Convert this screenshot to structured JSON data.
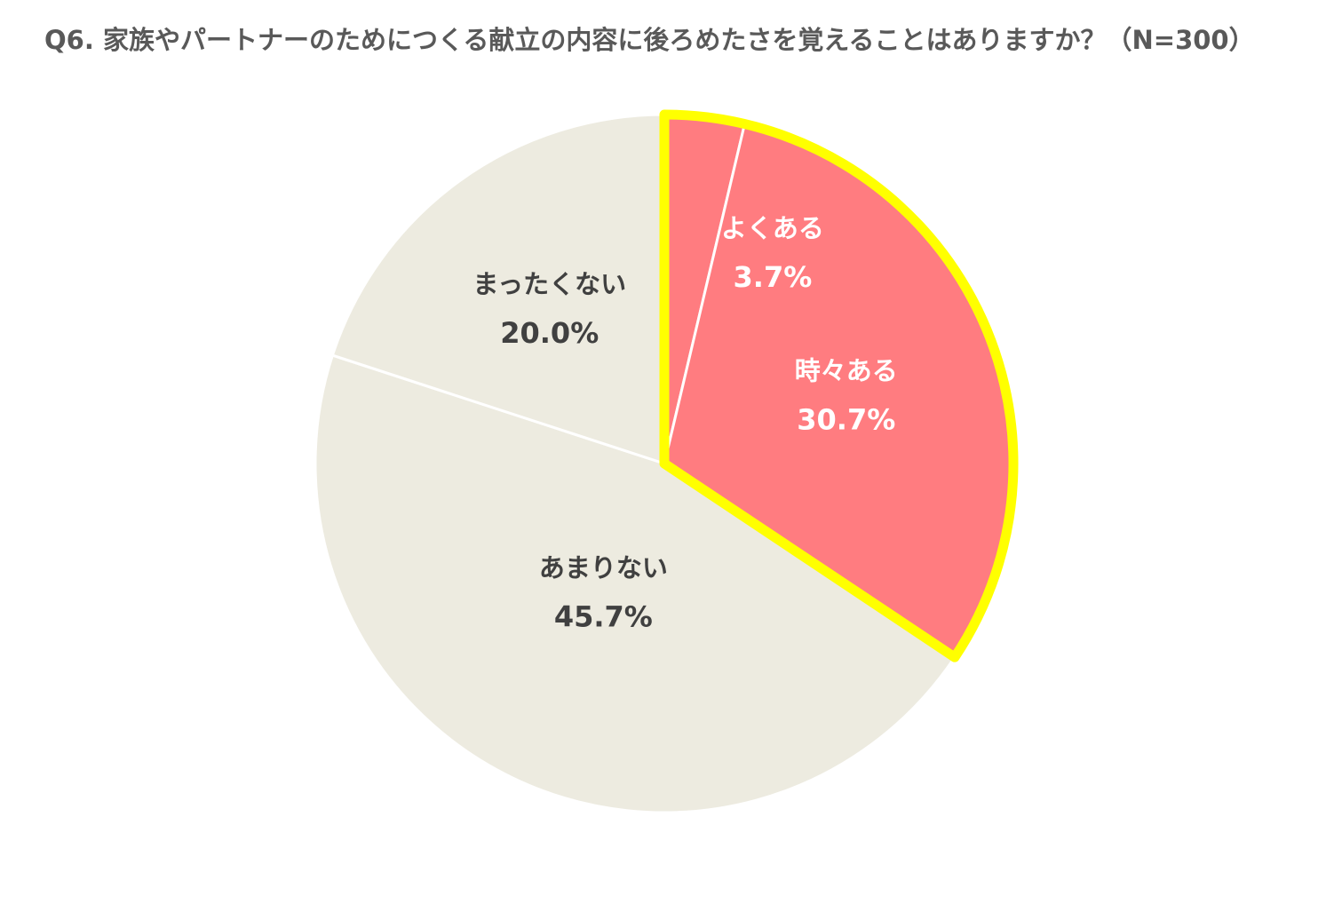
{
  "chart_data": {
    "type": "pie",
    "title": "Q6. 家族やパートナーのためにつくる献立の内容に後ろめたさを覚えることはありますか？（N=300）",
    "start": "12 o'clock",
    "direction": "clockwise",
    "unit": "%",
    "slices": [
      {
        "label": "よくある",
        "value": 3.7,
        "value_label": "3.7%",
        "color": "#FF7C80",
        "text_color": "#FFFFFF",
        "highlighted": true
      },
      {
        "label": "時々ある",
        "value": 30.7,
        "value_label": "30.7%",
        "color": "#FF7C80",
        "text_color": "#FFFFFF",
        "highlighted": true
      },
      {
        "label": "あまりない",
        "value": 45.7,
        "value_label": "45.7%",
        "color": "#EDEBE0",
        "text_color": "#404040",
        "highlighted": false
      },
      {
        "label": "まったくない",
        "value": 20.0,
        "value_label": "20.0%",
        "color": "#EDEBE0",
        "text_color": "#404040",
        "highlighted": false
      }
    ],
    "highlight_color": "#FFFF00",
    "separator_color": "#FFFFFF"
  }
}
